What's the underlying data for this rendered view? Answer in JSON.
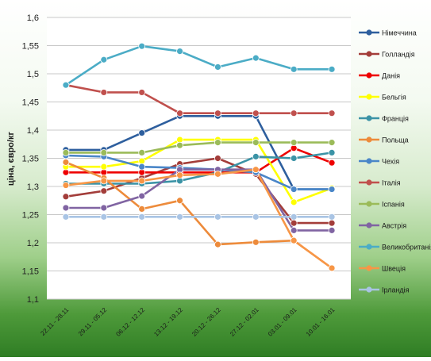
{
  "chart_data": {
    "type": "line",
    "title": "",
    "xlabel": "",
    "ylabel": "ціна, євро/кг",
    "ylim": [
      1.1,
      1.6
    ],
    "yticks": [
      "1,1",
      "1,15",
      "1,2",
      "1,25",
      "1,3",
      "1,35",
      "1,4",
      "1,45",
      "1,5",
      "1,55",
      "1,6"
    ],
    "grid": "horizontal",
    "legend_position": "right",
    "categories": [
      "22.11 - 28.11",
      "29.11 - 05.12",
      "06.12 - 12.12",
      "13.12 - 19.12",
      "20.12 - 26.12",
      "27.12 - 02.01",
      "03.01 - 09.01",
      "10.01 - 16.01"
    ],
    "series": [
      {
        "name": "Німеччина",
        "color": "#2e5f9e",
        "values": [
          1.365,
          1.365,
          1.395,
          1.425,
          1.425,
          1.425,
          1.295,
          1.295
        ]
      },
      {
        "name": "Голландія",
        "color": "#a33d3a",
        "values": [
          1.282,
          1.292,
          1.315,
          1.34,
          1.35,
          1.322,
          1.235,
          1.235
        ]
      },
      {
        "name": "Данія",
        "color": "#ee0000",
        "values": [
          1.325,
          1.325,
          1.325,
          1.325,
          1.325,
          1.325,
          1.368,
          1.342
        ]
      },
      {
        "name": "Бельгія",
        "color": "#ffff00",
        "values": [
          1.335,
          1.335,
          1.345,
          1.383,
          1.383,
          1.383,
          1.272,
          1.297
        ]
      },
      {
        "name": "Франція",
        "color": "#3b93a6",
        "values": [
          1.305,
          1.305,
          1.305,
          1.31,
          1.325,
          1.353,
          1.35,
          1.36
        ]
      },
      {
        "name": "Польща",
        "color": "#ed8b3b",
        "values": [
          1.343,
          1.315,
          1.26,
          1.275,
          1.197,
          1.201,
          1.204,
          1.155
        ]
      },
      {
        "name": "Чехія",
        "color": "#4a86c8",
        "values": [
          1.355,
          1.353,
          1.335,
          1.333,
          1.33,
          1.325,
          1.295,
          1.295
        ]
      },
      {
        "name": "Італія",
        "color": "#c0504d",
        "values": [
          1.48,
          1.467,
          1.467,
          1.43,
          1.43,
          1.43,
          1.43,
          1.43
        ]
      },
      {
        "name": "Іспанія",
        "color": "#9bbb59",
        "values": [
          1.36,
          1.36,
          1.36,
          1.373,
          1.378,
          1.378,
          1.378,
          1.378
        ]
      },
      {
        "name": "Австрія",
        "color": "#8064a2",
        "values": [
          1.262,
          1.262,
          1.283,
          1.33,
          1.33,
          1.33,
          1.222,
          1.222
        ]
      },
      {
        "name": "Великобританія",
        "color": "#4bacc6",
        "values": [
          1.48,
          1.525,
          1.549,
          1.54,
          1.512,
          1.528,
          1.508,
          1.508
        ]
      },
      {
        "name": "Швеція",
        "color": "#f79646",
        "values": [
          1.302,
          1.31,
          1.31,
          1.32,
          1.322,
          1.33,
          1.204,
          1.155
        ]
      },
      {
        "name": "Ірландія",
        "color": "#a9c4e4",
        "values": [
          1.246,
          1.246,
          1.246,
          1.246,
          1.246,
          1.246,
          1.246,
          1.246
        ]
      }
    ]
  }
}
